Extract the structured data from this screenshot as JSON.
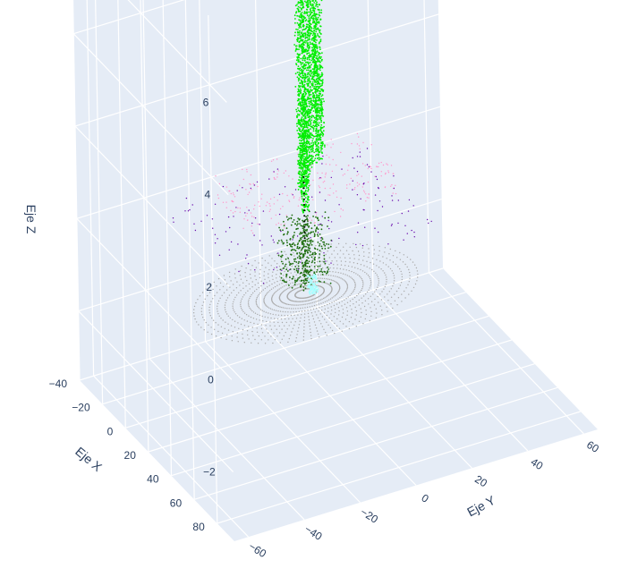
{
  "chart_data": {
    "type": "scatter",
    "subtype": "scatter3d",
    "title": "",
    "background_color": "#e5ecf6",
    "grid_color": "#ffffff",
    "text_color": "#2a3f5f",
    "axes": {
      "x": {
        "label": "Eje X",
        "range": [
          -40,
          95
        ],
        "ticks": [
          "−40",
          "−20",
          "0",
          "20",
          "40",
          "60",
          "80"
        ]
      },
      "y": {
        "label": "Eje Y",
        "range": [
          -65,
          65
        ],
        "ticks": [
          "−60",
          "−40",
          "−20",
          "0",
          "20",
          "40",
          "60"
        ]
      },
      "z": {
        "label": "Eje Z",
        "range": [
          -3.5,
          7.5
        ],
        "ticks": [
          "−2",
          "0",
          "2",
          "4",
          "6"
        ]
      }
    },
    "series": [
      {
        "color": "#00ee00",
        "description": "tall vertical point clusters",
        "clusters": [
          {
            "x": 2,
            "y": 3,
            "z": [
              1,
              7.2
            ],
            "points": 700
          },
          {
            "x": 4,
            "y": -2,
            "z": [
              0.5,
              5.8
            ],
            "points": 650
          },
          {
            "x": -6,
            "y": 8,
            "z": [
              0.8,
              5.3
            ],
            "points": 500
          },
          {
            "x": -9,
            "y": 5,
            "z": [
              0.6,
              5.1
            ],
            "points": 500
          },
          {
            "x": -15,
            "y": 12,
            "z": [
              0.5,
              2.6
            ],
            "points": 120
          },
          {
            "x": 1,
            "y": 0,
            "z": [
              0,
              2.5
            ],
            "points": 350
          }
        ]
      },
      {
        "color": "#aaaaaa",
        "description": "ground rings",
        "rings": 14
      },
      {
        "color": "#1f6e10",
        "description": "near ground cluster"
      },
      {
        "color": "#ff99cc",
        "description": "pink horizontal lines"
      },
      {
        "color": "#6a0dad",
        "description": "purple horizontal lines"
      },
      {
        "color": "#aaffff",
        "description": "cyan vehicle"
      },
      {
        "color": "#000000",
        "description": "black marker"
      }
    ]
  }
}
